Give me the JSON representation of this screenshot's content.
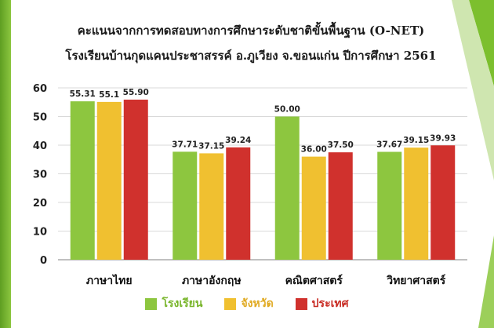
{
  "titles": {
    "line1": "คะแนนจากการทดสอบทางการศึกษาระดับชาติขั้นพื้นฐาน (O-NET)",
    "line2": "โรงเรียนบ้านกุดแคนประชาสรรค์  อ.ภูเวียง  จ.ขอนแก่น ปีการศึกษา 2561"
  },
  "colors": {
    "frame": "#7cbf2e",
    "series": [
      "#8dc63f",
      "#f0c030",
      "#d0312d"
    ],
    "legend_text": [
      "#78b52a",
      "#e0a920",
      "#c82a22"
    ]
  },
  "chart_data": {
    "type": "bar",
    "categories": [
      "ภาษาไทย",
      "ภาษาอังกฤษ",
      "คณิตศาสตร์",
      "วิทยาศาสตร์"
    ],
    "series": [
      {
        "name": "โรงเรียน",
        "values": [
          55.31,
          37.71,
          50.0,
          37.67
        ],
        "labels": [
          "55.31",
          "37.71",
          "50.00",
          "37.67"
        ]
      },
      {
        "name": "จังหวัด",
        "values": [
          55.1,
          37.15,
          36.0,
          39.15
        ],
        "labels": [
          "55.1",
          "37.15",
          "36.00",
          "39.15"
        ]
      },
      {
        "name": "ประเทศ",
        "values": [
          55.9,
          39.24,
          37.5,
          39.93
        ],
        "labels": [
          "55.90",
          "39.24",
          "37.50",
          "39.93"
        ]
      }
    ],
    "yticks": [
      "0",
      "10",
      "20",
      "30",
      "40",
      "50",
      "60"
    ],
    "ylim": [
      0,
      60
    ],
    "grid": true,
    "legend_position": "bottom"
  }
}
